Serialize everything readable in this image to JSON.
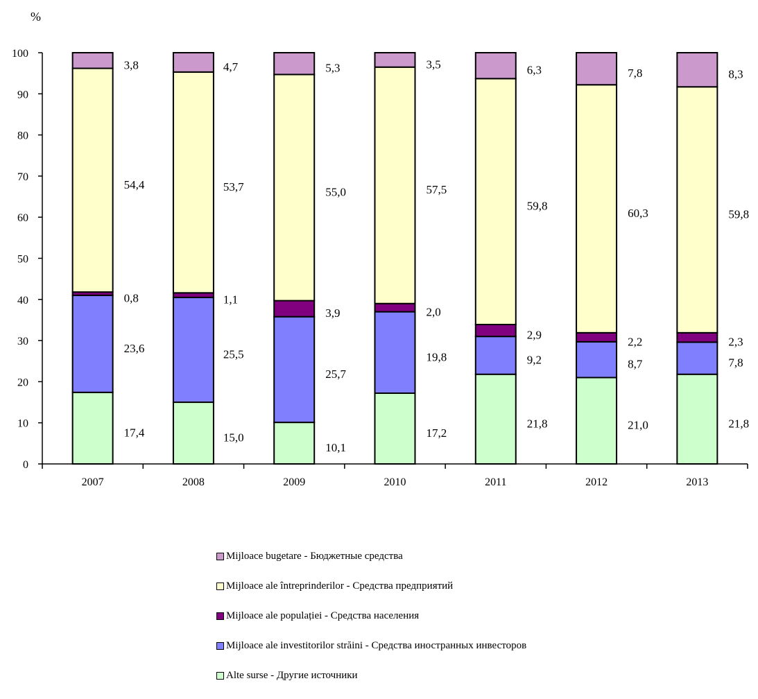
{
  "chart_data": {
    "type": "bar",
    "stacked": true,
    "unit_label": "%",
    "categories": [
      "2007",
      "2008",
      "2009",
      "2010",
      "2011",
      "2012",
      "2013"
    ],
    "series": [
      {
        "name": "Alte surse - Другие источники",
        "color": "#ccffcc",
        "values": [
          17.4,
          15.0,
          10.1,
          17.2,
          21.8,
          21.0,
          21.8
        ],
        "labels": [
          "17,4",
          "15,0",
          "10,1",
          "17,2",
          "21,8",
          "21,0",
          "21,8"
        ]
      },
      {
        "name": "Mijloace ale investitorilor străini - Средства иностранных инвесторов",
        "color": "#8080ff",
        "values": [
          23.6,
          25.5,
          25.7,
          19.8,
          9.2,
          8.7,
          7.8
        ],
        "labels": [
          "23,6",
          "25,5",
          "25,7",
          "19,8",
          "9,2",
          "8,7",
          "7,8"
        ]
      },
      {
        "name": "Mijloace ale populației - Средства населения",
        "color": "#800080",
        "values": [
          0.8,
          1.1,
          3.9,
          2.0,
          2.9,
          2.2,
          2.3
        ],
        "labels": [
          "0,8",
          "1,1",
          "3,9",
          "2,0",
          "2,9",
          "2,2",
          "2,3"
        ]
      },
      {
        "name": "Mijloace ale întreprinderilor - Средства предприятий",
        "color": "#ffffcc",
        "values": [
          54.4,
          53.7,
          55.0,
          57.5,
          59.8,
          60.3,
          59.8
        ],
        "labels": [
          "54,4",
          "53,7",
          "55,0",
          "57,5",
          "59,8",
          "60,3",
          "59,8"
        ]
      },
      {
        "name": "Mijloace bugetare - Бюджетные средства",
        "color": "#cc99cc",
        "values": [
          3.8,
          4.7,
          5.3,
          3.5,
          6.3,
          7.8,
          8.3
        ],
        "labels": [
          "3,8",
          "4,7",
          "5,3",
          "3,5",
          "6,3",
          "7,8",
          "8,3"
        ]
      }
    ],
    "ylim": [
      0,
      100
    ],
    "yticks": [
      0,
      10,
      20,
      30,
      40,
      50,
      60,
      70,
      80,
      90,
      100
    ],
    "grid": false,
    "legend_position": "bottom",
    "legend_order": [
      4,
      3,
      2,
      1,
      0
    ]
  }
}
